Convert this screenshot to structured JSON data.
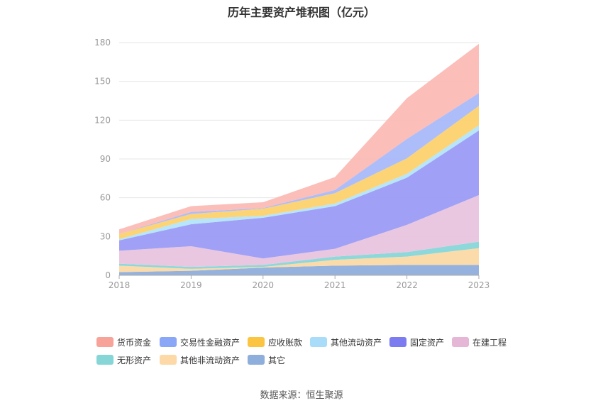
{
  "chart_data": {
    "type": "area",
    "stacked": true,
    "title": "历年主要资产堆积图（亿元）",
    "categories": [
      "2018",
      "2019",
      "2020",
      "2021",
      "2022",
      "2023"
    ],
    "ylim": [
      0,
      180
    ],
    "yticks": [
      0,
      30,
      60,
      90,
      120,
      150,
      180
    ],
    "grid": true,
    "legend_position": "bottom",
    "series": [
      {
        "name": "其它",
        "color": "#8eaedb",
        "values": [
          2.5,
          3.5,
          6,
          7.5,
          8,
          8
        ]
      },
      {
        "name": "其他非流动资产",
        "color": "#fcd9a6",
        "values": [
          5,
          1.5,
          0.5,
          4.5,
          6.5,
          13
        ]
      },
      {
        "name": "无形资产",
        "color": "#86d6d8",
        "values": [
          1.5,
          1.5,
          1.5,
          2.5,
          3.5,
          5
        ]
      },
      {
        "name": "在建工程",
        "color": "#e9c4de",
        "values": [
          10,
          16,
          5,
          6,
          21,
          36
        ]
      },
      {
        "name": "固定资产",
        "color": "#9b9cf6",
        "values": [
          8,
          17,
          31.5,
          33,
          36.5,
          50
        ]
      },
      {
        "name": "其他流动资产",
        "color": "#b3e4fb",
        "values": [
          1,
          4,
          1.5,
          2,
          3,
          4
        ]
      },
      {
        "name": "应收账款",
        "color": "#fcd26e",
        "values": [
          4,
          4,
          5.5,
          8,
          12,
          15
        ]
      },
      {
        "name": "交易性金融资产",
        "color": "#a9b9fa",
        "values": [
          0,
          1.5,
          0.5,
          2.5,
          15,
          10
        ]
      },
      {
        "name": "货币资金",
        "color": "#fbbbb5",
        "values": [
          3.5,
          4.5,
          4.5,
          10,
          31.5,
          38
        ]
      }
    ]
  },
  "legend": {
    "items": [
      {
        "label": "货币资金",
        "color": "#f7a39a"
      },
      {
        "label": "交易性金融资产",
        "color": "#8aa6f7"
      },
      {
        "label": "应收账款",
        "color": "#fbc541"
      },
      {
        "label": "其他流动资产",
        "color": "#a8dcf8"
      },
      {
        "label": "固定资产",
        "color": "#7c7cf0"
      },
      {
        "label": "在建工程",
        "color": "#e6b6d6"
      },
      {
        "label": "无形资产",
        "color": "#86d6d8"
      },
      {
        "label": "其他非流动资产",
        "color": "#fcd9a6"
      },
      {
        "label": "其它",
        "color": "#8eaedb"
      }
    ]
  },
  "source": "数据来源：恒生聚源"
}
